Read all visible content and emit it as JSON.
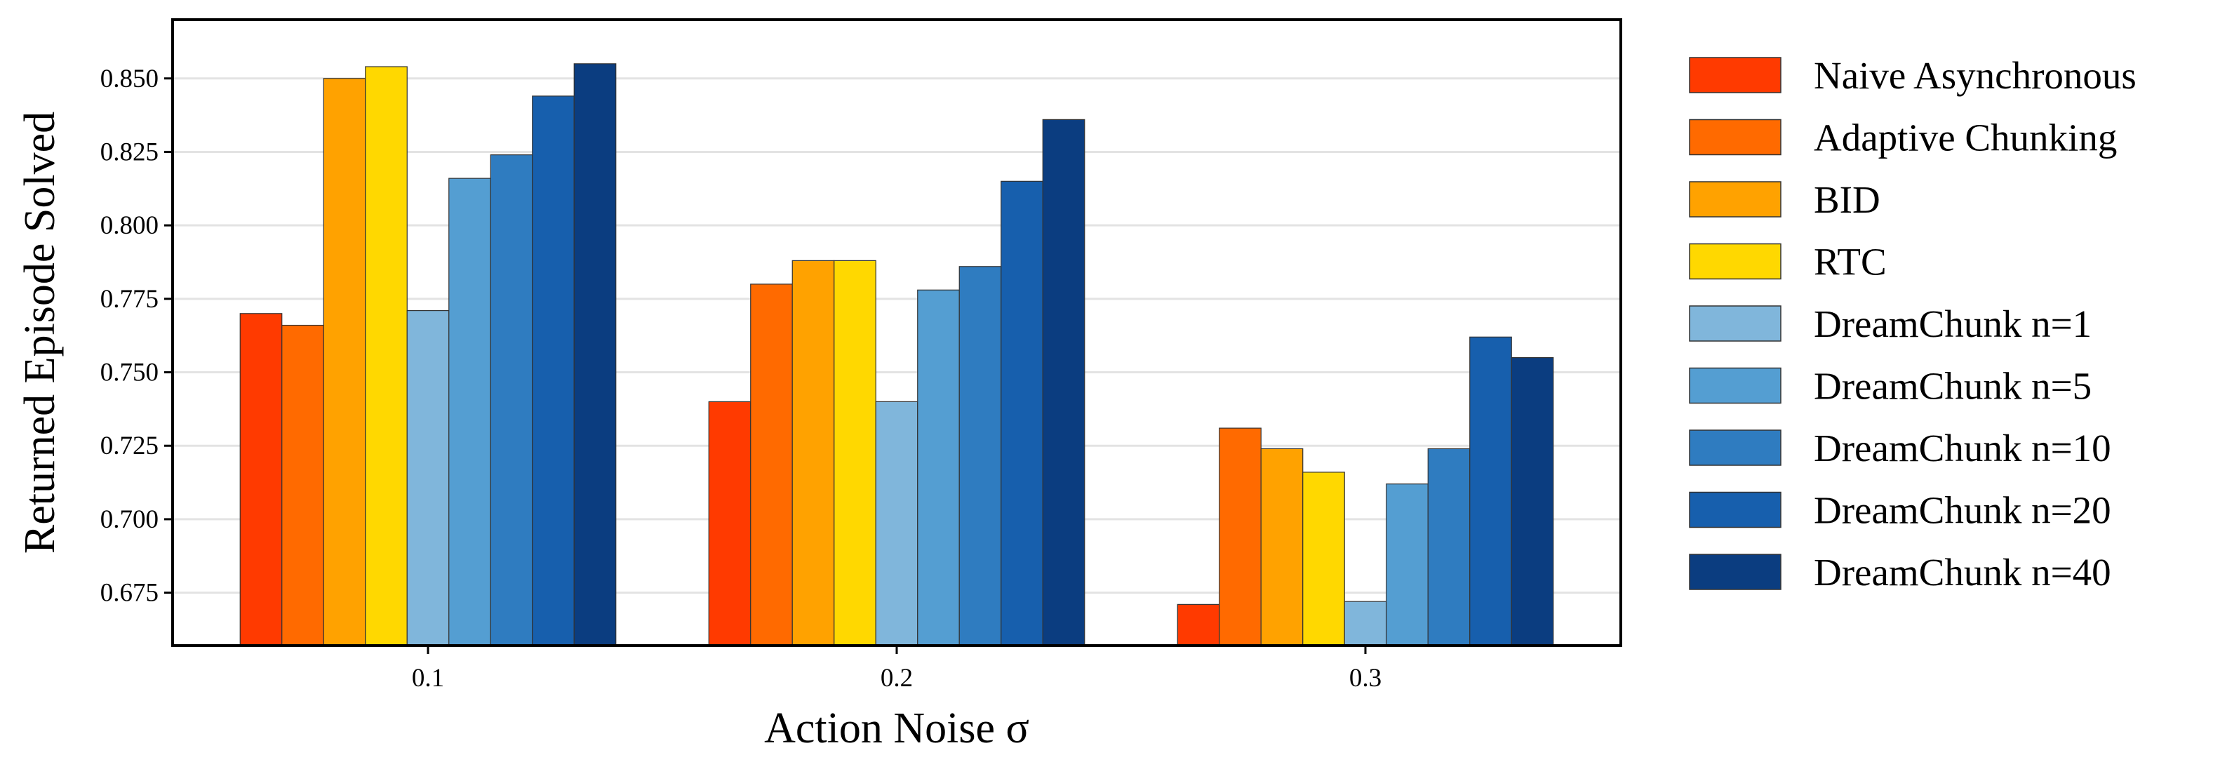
{
  "chart_data": {
    "type": "bar",
    "xlabel": "Action Noise σ",
    "ylabel": "Returned Episode Solved",
    "categories": [
      "0.1",
      "0.2",
      "0.3"
    ],
    "ylim": [
      0.657,
      0.87
    ],
    "yticks": [
      "0.675",
      "0.700",
      "0.725",
      "0.750",
      "0.775",
      "0.800",
      "0.825",
      "0.850"
    ],
    "ytick_values": [
      0.675,
      0.7,
      0.725,
      0.75,
      0.775,
      0.8,
      0.825,
      0.85
    ],
    "grid": "horizontal",
    "legend_position": "right outside",
    "series": [
      {
        "name": "Naive Asynchronous",
        "color": "#ff3a00",
        "values": [
          0.77,
          0.74,
          0.671
        ]
      },
      {
        "name": "Adaptive Chunking",
        "color": "#ff6a00",
        "values": [
          0.766,
          0.78,
          0.731
        ]
      },
      {
        "name": "BID",
        "color": "#ffa200",
        "values": [
          0.85,
          0.788,
          0.724
        ]
      },
      {
        "name": "RTC",
        "color": "#ffd800",
        "values": [
          0.854,
          0.788,
          0.716
        ]
      },
      {
        "name": "DreamChunk n=1",
        "color": "#80b6db",
        "values": [
          0.771,
          0.74,
          0.672
        ]
      },
      {
        "name": "DreamChunk n=5",
        "color": "#549ed2",
        "values": [
          0.816,
          0.778,
          0.712
        ]
      },
      {
        "name": "DreamChunk n=10",
        "color": "#2f7cc0",
        "values": [
          0.824,
          0.786,
          0.724
        ]
      },
      {
        "name": "DreamChunk n=20",
        "color": "#175fad",
        "values": [
          0.844,
          0.815,
          0.762
        ]
      },
      {
        "name": "DreamChunk n=40",
        "color": "#0b3d80",
        "values": [
          0.855,
          0.836,
          0.755
        ]
      }
    ]
  }
}
